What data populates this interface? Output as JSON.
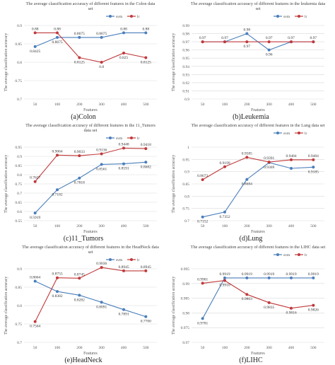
{
  "colors": {
    "svm": "#4a7ebb",
    "lr": "#c0393b",
    "grid": "#d9d9d9"
  },
  "chart_data": [
    {
      "id": "colon",
      "type": "line",
      "caption": "(a)Colon",
      "title": "The average classification accuracy of different features in the Colon data set",
      "xlabel": "Features",
      "ylabel": "The average classification accuracy",
      "categories": [
        "50",
        "100",
        "200",
        "300",
        "400",
        "500"
      ],
      "ylim": [
        0.7,
        0.9
      ],
      "yticks": [
        "0.7",
        "0.75",
        "0.8",
        "0.85",
        "0.9"
      ],
      "legend_position": "top-right",
      "series": [
        {
          "name": "svm",
          "key": "svm",
          "values": [
            0.8425,
            0.8675,
            0.8675,
            0.8675,
            0.88,
            0.88
          ],
          "labels": [
            "0.8425",
            "0.8675",
            "0.8675",
            "0.8675",
            "0.88",
            "0.88"
          ]
        },
        {
          "name": "lr",
          "key": "lr",
          "values": [
            0.88,
            0.88,
            0.8125,
            0.8,
            0.825,
            0.8125
          ],
          "labels": [
            "0.88",
            "0.88",
            "0.8125",
            "0.8",
            "0.825",
            "0.8125"
          ]
        }
      ]
    },
    {
      "id": "leukemia",
      "type": "line",
      "caption": "(b)Leukemia",
      "title": "The average classification accuracy of different features in the leukemia data set",
      "xlabel": "Features",
      "ylabel": "The average classification accuracy",
      "categories": [
        "50",
        "100",
        "200",
        "300",
        "400",
        "500"
      ],
      "ylim": [
        0.9,
        0.99
      ],
      "yticks": [
        "0.9",
        "0.91",
        "0.92",
        "0.93",
        "0.94",
        "0.95",
        "0.96",
        "0.97",
        "0.98",
        "0.99"
      ],
      "legend_position": "top-right",
      "series": [
        {
          "name": "svm",
          "key": "svm",
          "values": [
            0.97,
            0.97,
            0.98,
            0.96,
            0.97,
            0.97
          ],
          "labels": [
            "",
            "",
            "0.98",
            "0.96",
            "",
            ""
          ]
        },
        {
          "name": "lr",
          "key": "lr",
          "values": [
            0.97,
            0.97,
            0.97,
            0.97,
            0.97,
            0.97
          ],
          "labels": [
            "0.97",
            "0.97",
            "0.97",
            "0.97",
            "0.97",
            "0.97"
          ]
        }
      ]
    },
    {
      "id": "tumors",
      "type": "line",
      "caption": "(c)11_Tumors",
      "title": "The average classification accuracy of different features in the 11_Tumors data set",
      "xlabel": "Features",
      "ylabel": "The average classification accuracy",
      "categories": [
        "50",
        "100",
        "200",
        "300",
        "400",
        "500"
      ],
      "ylim": [
        0.55,
        0.95
      ],
      "yticks": [
        "0.55",
        "0.6",
        "0.65",
        "0.7",
        "0.75",
        "0.8",
        "0.85",
        "0.9",
        "0.95"
      ],
      "legend_position": "top-right",
      "series": [
        {
          "name": "svm",
          "key": "svm",
          "values": [
            0.5919,
            0.7182,
            0.7818,
            0.8561,
            0.8591,
            0.8682
          ],
          "labels": [
            "0.5919",
            "0.7182",
            "0.7818",
            "0.8561",
            "0.8591",
            "0.8682"
          ]
        },
        {
          "name": "lr",
          "key": "lr",
          "values": [
            0.7627,
            0.9064,
            0.9033,
            0.9136,
            0.9448,
            0.9418
          ],
          "labels": [
            "0.7627",
            "0.9064",
            "0.9033",
            "0.9136",
            "0.9448",
            "0.9418"
          ]
        }
      ]
    },
    {
      "id": "lung",
      "type": "line",
      "caption": "(d)Lung",
      "title": "The average classification accuracy of different features in the Lung data set",
      "xlabel": "Features",
      "ylabel": "The average classification accuracy",
      "categories": [
        "50",
        "100",
        "200",
        "300",
        "400",
        "500"
      ],
      "ylim": [
        0.7,
        1.0
      ],
      "yticks": [
        "0.7",
        "0.75",
        "0.8",
        "0.85",
        "0.9",
        "0.95",
        "1"
      ],
      "legend_position": "top-right",
      "series": [
        {
          "name": "svm",
          "key": "svm",
          "values": [
            0.7152,
            0.7352,
            0.8684,
            0.9369,
            0.9136,
            0.9185
          ],
          "labels": [
            "0.7152",
            "0.7352",
            "0.8684",
            "0.9369",
            "",
            "0.9185"
          ]
        },
        {
          "name": "lr",
          "key": "lr",
          "values": [
            0.8673,
            0.9199,
            0.9585,
            0.9391,
            0.9484,
            0.9484
          ],
          "labels": [
            "0.8673",
            "0.9199",
            "0.9585",
            "0.9391",
            "0.9484",
            "0.9484"
          ]
        }
      ]
    },
    {
      "id": "headneck",
      "type": "line",
      "caption": "(e)HeadNeck",
      "title": "The average classification accuracy of different features in the HeadNeck data set",
      "xlabel": "Features",
      "ylabel": "The average classification accuracy",
      "categories": [
        "50",
        "100",
        "200",
        "300",
        "400",
        "500"
      ],
      "ylim": [
        0.7,
        0.9
      ],
      "yticks": [
        "0.7",
        "0.75",
        "0.8",
        "0.85",
        "0.9"
      ],
      "legend_position": "top-right",
      "series": [
        {
          "name": "svm",
          "key": "svm",
          "values": [
            0.8664,
            0.8382,
            0.8282,
            0.8091,
            0.7891,
            0.77
          ],
          "labels": [
            "0.8664",
            "0.8382",
            "0.8282",
            "0.8091",
            "0.7891",
            "0.7700"
          ]
        },
        {
          "name": "lr",
          "key": "lr",
          "values": [
            0.7564,
            0.8755,
            0.8745,
            0.9036,
            0.8945,
            0.8945
          ],
          "labels": [
            "0.7564",
            "0.8755",
            "0.8745",
            "0.9036",
            "0.8945",
            "0.8945"
          ]
        }
      ]
    },
    {
      "id": "lihc",
      "type": "line",
      "caption": "(f)LIHC",
      "title": "The average classification accuracy of different features in the LIHC data set",
      "xlabel": "Features",
      "ylabel": "The average classification accuracy",
      "categories": [
        "50",
        "100",
        "200",
        "300",
        "400",
        "500"
      ],
      "ylim": [
        0.97,
        0.995
      ],
      "yticks": [
        "0.97",
        "0.975",
        "0.98",
        "0.985",
        "0.99",
        "0.995"
      ],
      "legend_position": "top-right",
      "series": [
        {
          "name": "svm",
          "key": "svm",
          "values": [
            0.9781,
            0.9919,
            0.9919,
            0.9919,
            0.9919,
            0.9919
          ],
          "labels": [
            "0.9781",
            "0.9919",
            "0.9919",
            "0.9919",
            "0.9919",
            "0.9919"
          ]
        },
        {
          "name": "lr",
          "key": "lr",
          "values": [
            0.9901,
            0.991,
            0.9863,
            0.9835,
            0.9816,
            0.9826
          ],
          "labels": [
            "0.9901",
            "0.9910",
            "0.9863",
            "0.9835",
            "0.9816",
            "0.9826"
          ]
        }
      ]
    }
  ]
}
